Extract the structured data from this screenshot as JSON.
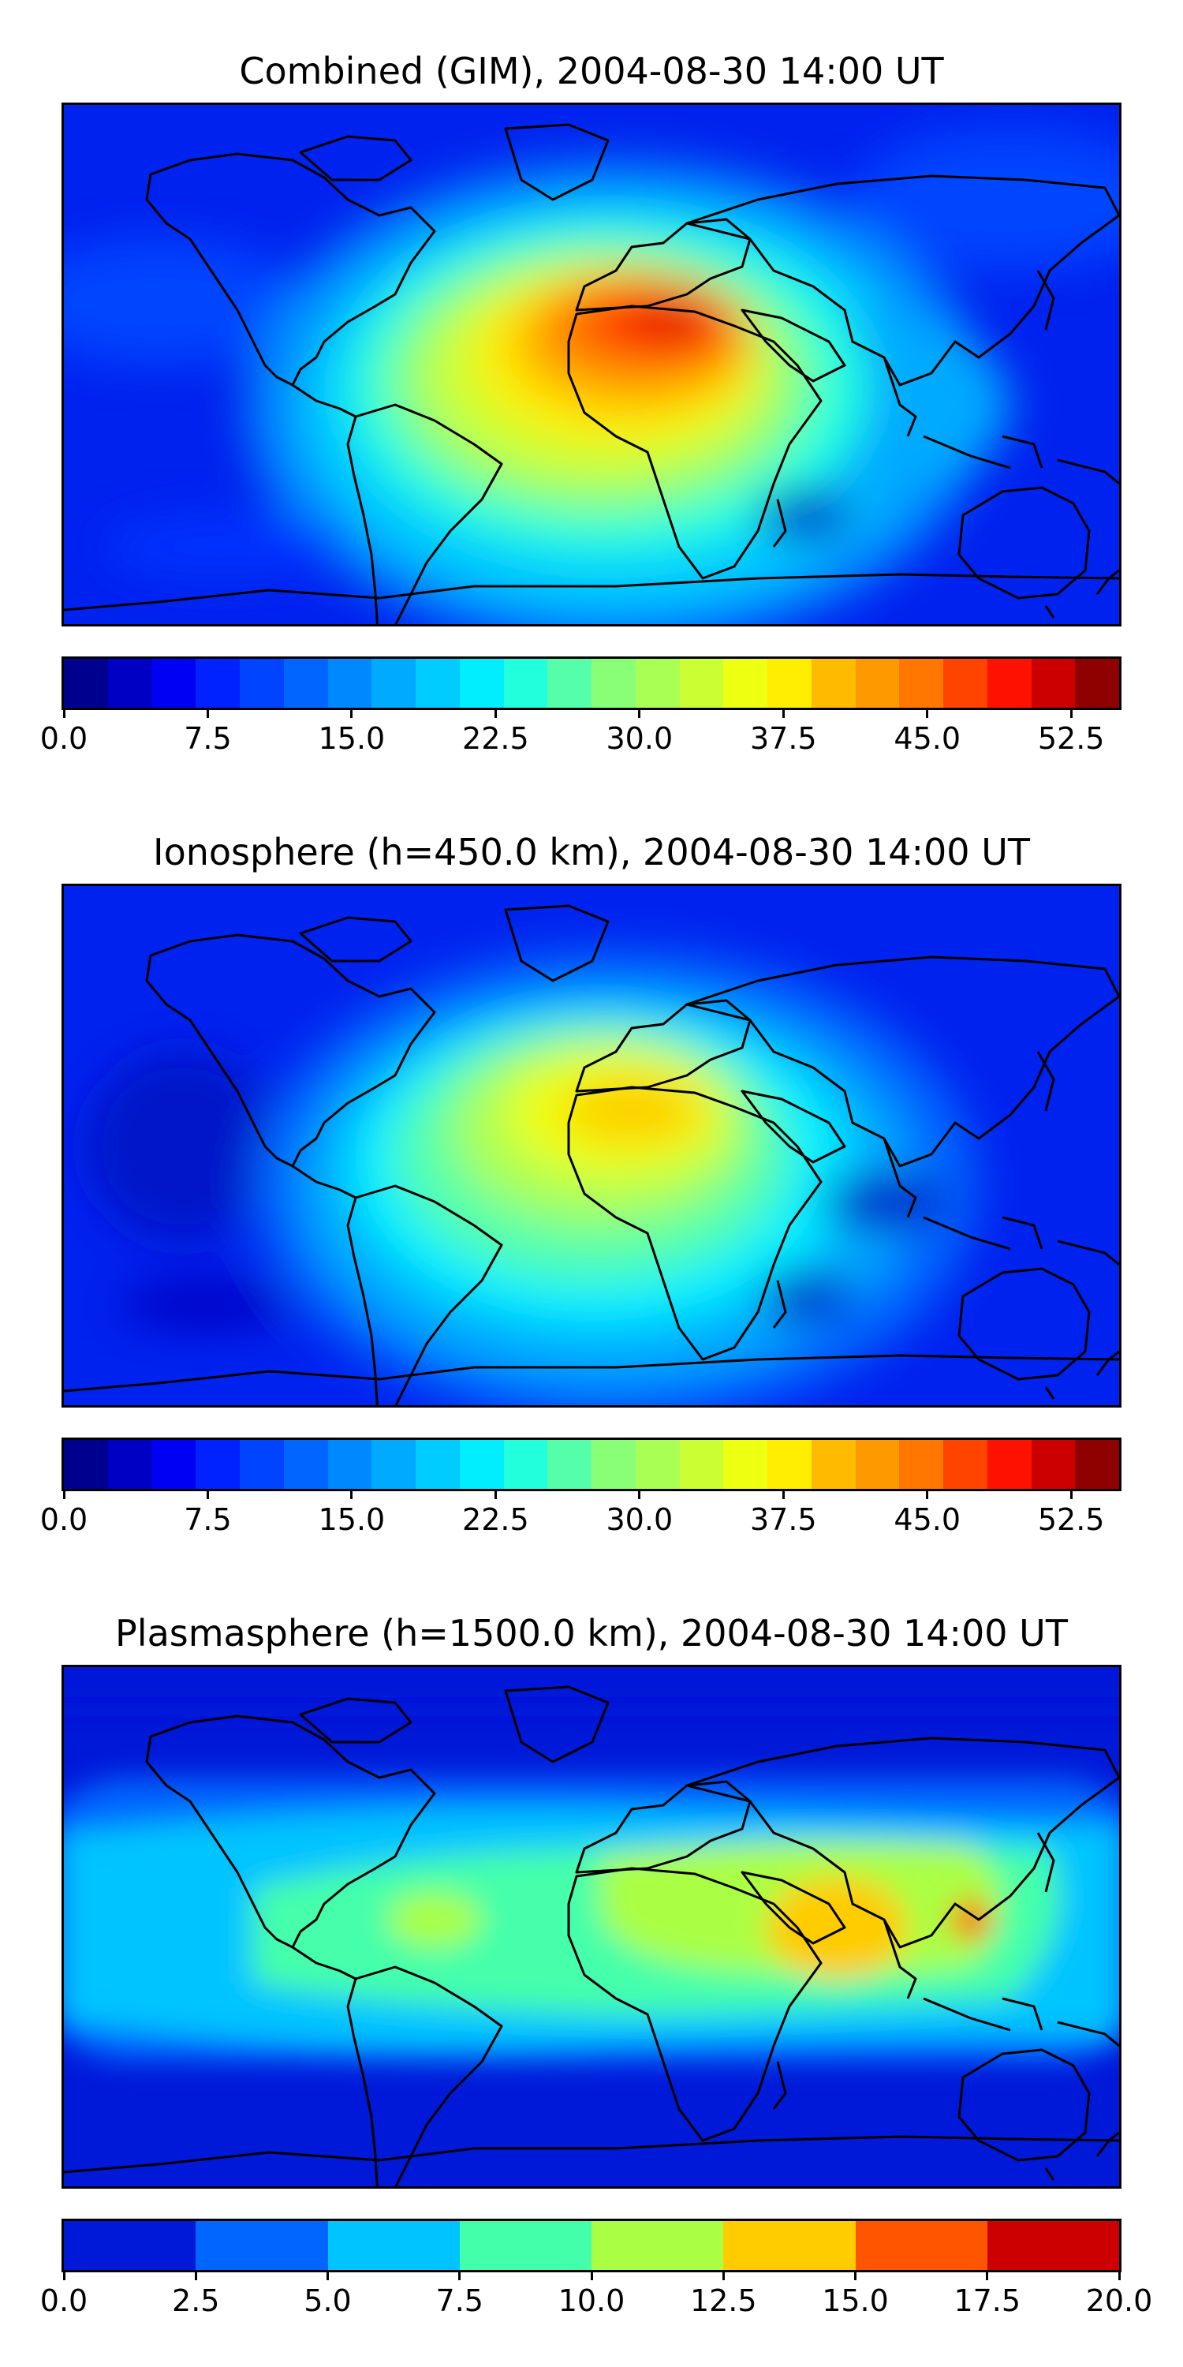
{
  "panels": [
    {
      "title": "Combined (GIM), 2004-08-30 14:00 UT",
      "ticks": [
        "0.0",
        "7.5",
        "15.0",
        "22.5",
        "30.0",
        "37.5",
        "45.0",
        "52.5"
      ],
      "tick_values": [
        0,
        7.5,
        15,
        22.5,
        30,
        37.5,
        45,
        52.5
      ],
      "range": [
        0,
        55
      ],
      "colors": [
        "#00008f",
        "#0000c4",
        "#0000f4",
        "#0022ff",
        "#0044ff",
        "#0066ff",
        "#0088ff",
        "#00aaff",
        "#00ccff",
        "#00eeff",
        "#22ffdd",
        "#55ffaa",
        "#88ff77",
        "#aaff55",
        "#ccff33",
        "#eeff11",
        "#ffee00",
        "#ffbb00",
        "#ff9900",
        "#ff7700",
        "#ff4400",
        "#ff1100",
        "#cc0000",
        "#8f0000"
      ]
    },
    {
      "title": "Ionosphere  (h=450.0 km), 2004-08-30 14:00 UT",
      "ticks": [
        "0.0",
        "7.5",
        "15.0",
        "22.5",
        "30.0",
        "37.5",
        "45.0",
        "52.5"
      ],
      "tick_values": [
        0,
        7.5,
        15,
        22.5,
        30,
        37.5,
        45,
        52.5
      ],
      "range": [
        0,
        55
      ],
      "colors": [
        "#00008f",
        "#0000c4",
        "#0000f4",
        "#0022ff",
        "#0044ff",
        "#0066ff",
        "#0088ff",
        "#00aaff",
        "#00ccff",
        "#00eeff",
        "#22ffdd",
        "#55ffaa",
        "#88ff77",
        "#aaff55",
        "#ccff33",
        "#eeff11",
        "#ffee00",
        "#ffbb00",
        "#ff9900",
        "#ff7700",
        "#ff4400",
        "#ff1100",
        "#cc0000",
        "#8f0000"
      ]
    },
    {
      "title": "Plasmasphere (h=1500.0 km), 2004-08-30 14:00 UT",
      "ticks": [
        "0.0",
        "2.5",
        "5.0",
        "7.5",
        "10.0",
        "12.5",
        "15.0",
        "17.5",
        "20.0"
      ],
      "tick_values": [
        0,
        2.5,
        5,
        7.5,
        10,
        12.5,
        15,
        17.5,
        20
      ],
      "range": [
        0,
        20
      ],
      "colors": [
        "#0018d8",
        "#0066ff",
        "#00c4ff",
        "#44ffaa",
        "#aaff44",
        "#ffcc00",
        "#ff5500",
        "#cc0000"
      ]
    }
  ]
}
